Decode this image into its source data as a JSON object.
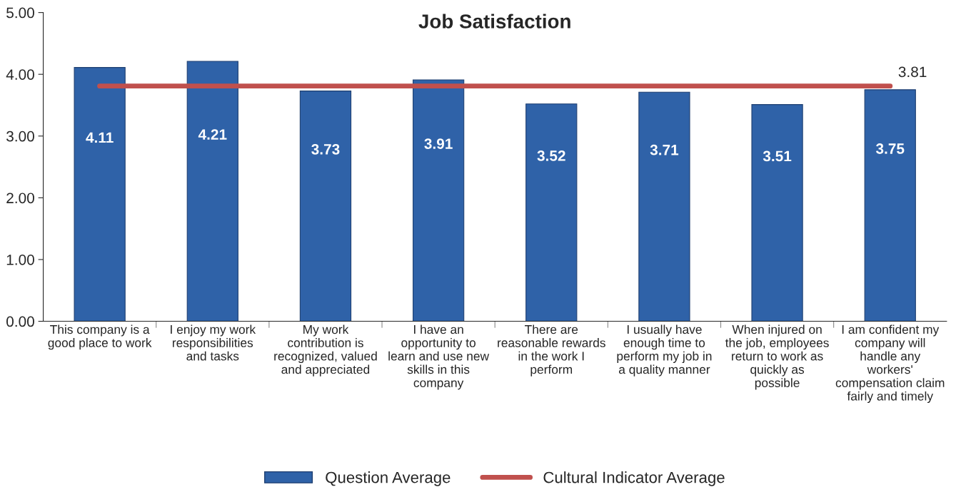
{
  "chart_data": {
    "type": "bar",
    "title": "Job Satisfaction",
    "categories": [
      "This company is a good place to work",
      "I enjoy my work responsibilities and tasks",
      "My work contribution is recognized, valued and appreciated",
      "I have an opportunity to learn and use new skills in this company",
      "There are reasonable rewards in the work I perform",
      "I usually have enough time to perform my job in a quality manner",
      "When injured on the job, employees return to work as quickly as possible",
      "I am confident my company will handle any workers' compensation claim fairly and timely"
    ],
    "series": [
      {
        "name": "Question Average",
        "color": "#2f62a8",
        "values": [
          4.11,
          4.21,
          3.73,
          3.91,
          3.52,
          3.71,
          3.51,
          3.75
        ],
        "value_labels": [
          "4.11",
          "4.21",
          "3.73",
          "3.91",
          "3.52",
          "3.71",
          "3.51",
          "3.75"
        ]
      },
      {
        "name": "Cultural Indicator Average",
        "type": "line",
        "color": "#c0504d",
        "values": [
          3.81,
          3.81,
          3.81,
          3.81,
          3.81,
          3.81,
          3.81,
          3.81
        ],
        "value_labels": [
          null,
          null,
          null,
          null,
          null,
          null,
          null,
          "3.81"
        ]
      }
    ],
    "ylim": [
      0,
      5
    ],
    "yticks": [
      {
        "value": 0,
        "label": "0.00"
      },
      {
        "value": 1,
        "label": "1.00"
      },
      {
        "value": 2,
        "label": "2.00"
      },
      {
        "value": 3,
        "label": "3.00"
      },
      {
        "value": 4,
        "label": "4.00"
      },
      {
        "value": 5,
        "label": "5.00"
      }
    ],
    "grid": false,
    "legend": "bottom",
    "marker": "none"
  }
}
